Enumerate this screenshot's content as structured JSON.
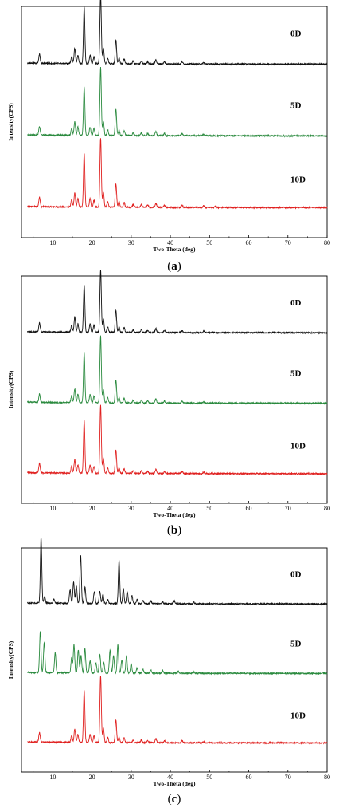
{
  "chart_data": [
    {
      "type": "line",
      "panel_label": "a",
      "xlabel": "Two-Theta (deg)",
      "ylabel": "Intensity(CPS)",
      "xlim": [
        2,
        80
      ],
      "xticks": [
        10,
        20,
        30,
        40,
        50,
        60,
        70,
        80
      ],
      "series": [
        {
          "name": "0D",
          "color": "#e0201f",
          "peaks": [
            [
              6.6,
              0.14
            ],
            [
              14.8,
              0.1
            ],
            [
              15.6,
              0.2
            ],
            [
              16.4,
              0.12
            ],
            [
              18.0,
              0.78
            ],
            [
              19.5,
              0.12
            ],
            [
              20.5,
              0.1
            ],
            [
              22.2,
              1.0
            ],
            [
              22.9,
              0.22
            ],
            [
              24.0,
              0.08
            ],
            [
              26.1,
              0.34
            ],
            [
              26.9,
              0.08
            ],
            [
              28.2,
              0.07
            ],
            [
              30.5,
              0.04
            ],
            [
              32.6,
              0.04
            ],
            [
              34.2,
              0.03
            ],
            [
              36.3,
              0.06
            ],
            [
              38.5,
              0.03
            ],
            [
              43.0,
              0.03
            ],
            [
              48.5,
              0.02
            ],
            [
              51.5,
              0.02
            ]
          ]
        },
        {
          "name": "5D",
          "color": "#2a8a3e",
          "peaks": [
            [
              6.6,
              0.12
            ],
            [
              14.8,
              0.1
            ],
            [
              15.6,
              0.2
            ],
            [
              16.4,
              0.12
            ],
            [
              18.0,
              0.7
            ],
            [
              19.5,
              0.12
            ],
            [
              20.5,
              0.1
            ],
            [
              22.2,
              0.98
            ],
            [
              22.9,
              0.2
            ],
            [
              24.0,
              0.08
            ],
            [
              26.1,
              0.38
            ],
            [
              26.9,
              0.08
            ],
            [
              28.2,
              0.07
            ],
            [
              30.5,
              0.04
            ],
            [
              32.6,
              0.04
            ],
            [
              34.2,
              0.03
            ],
            [
              36.3,
              0.06
            ],
            [
              38.5,
              0.03
            ],
            [
              43.0,
              0.03
            ],
            [
              48.5,
              0.02
            ]
          ]
        },
        {
          "name": "10D",
          "color": "#111111",
          "peaks": [
            [
              6.6,
              0.13
            ],
            [
              14.8,
              0.1
            ],
            [
              15.6,
              0.22
            ],
            [
              16.4,
              0.12
            ],
            [
              18.0,
              0.82
            ],
            [
              19.5,
              0.12
            ],
            [
              20.5,
              0.1
            ],
            [
              22.2,
              1.0
            ],
            [
              22.9,
              0.22
            ],
            [
              24.0,
              0.08
            ],
            [
              26.1,
              0.34
            ],
            [
              26.9,
              0.08
            ],
            [
              28.2,
              0.07
            ],
            [
              30.5,
              0.04
            ],
            [
              32.6,
              0.04
            ],
            [
              34.2,
              0.03
            ],
            [
              36.3,
              0.06
            ],
            [
              38.5,
              0.03
            ],
            [
              43.0,
              0.03
            ],
            [
              48.5,
              0.02
            ]
          ]
        }
      ]
    },
    {
      "type": "line",
      "panel_label": "b",
      "xlabel": "Two-Theta (deg)",
      "ylabel": "Intensity(CPS)",
      "xlim": [
        2,
        80
      ],
      "xticks": [
        10,
        20,
        30,
        40,
        50,
        60,
        70,
        80
      ],
      "series": [
        {
          "name": "0D",
          "color": "#e0201f",
          "peaks": [
            [
              6.6,
              0.14
            ],
            [
              14.8,
              0.1
            ],
            [
              15.6,
              0.2
            ],
            [
              16.4,
              0.12
            ],
            [
              18.0,
              0.78
            ],
            [
              19.5,
              0.12
            ],
            [
              20.5,
              0.1
            ],
            [
              22.2,
              1.0
            ],
            [
              22.9,
              0.22
            ],
            [
              24.0,
              0.08
            ],
            [
              26.1,
              0.34
            ],
            [
              26.9,
              0.08
            ],
            [
              28.2,
              0.07
            ],
            [
              30.5,
              0.04
            ],
            [
              32.6,
              0.04
            ],
            [
              34.2,
              0.03
            ],
            [
              36.3,
              0.06
            ],
            [
              38.5,
              0.03
            ],
            [
              43.0,
              0.03
            ],
            [
              48.5,
              0.02
            ]
          ]
        },
        {
          "name": "5D",
          "color": "#2a8a3e",
          "peaks": [
            [
              6.6,
              0.12
            ],
            [
              14.8,
              0.1
            ],
            [
              15.6,
              0.2
            ],
            [
              16.4,
              0.12
            ],
            [
              18.0,
              0.74
            ],
            [
              19.5,
              0.12
            ],
            [
              20.5,
              0.1
            ],
            [
              22.2,
              0.98
            ],
            [
              22.9,
              0.2
            ],
            [
              24.0,
              0.08
            ],
            [
              26.1,
              0.34
            ],
            [
              26.9,
              0.08
            ],
            [
              28.2,
              0.07
            ],
            [
              30.5,
              0.04
            ],
            [
              32.6,
              0.04
            ],
            [
              34.2,
              0.03
            ],
            [
              36.3,
              0.06
            ],
            [
              38.5,
              0.03
            ],
            [
              43.0,
              0.03
            ],
            [
              48.5,
              0.02
            ]
          ]
        },
        {
          "name": "10D",
          "color": "#111111",
          "peaks": [
            [
              6.6,
              0.13
            ],
            [
              14.8,
              0.1
            ],
            [
              15.6,
              0.22
            ],
            [
              16.4,
              0.12
            ],
            [
              18.0,
              0.7
            ],
            [
              19.5,
              0.12
            ],
            [
              20.5,
              0.1
            ],
            [
              22.2,
              0.92
            ],
            [
              22.9,
              0.2
            ],
            [
              24.0,
              0.08
            ],
            [
              26.1,
              0.32
            ],
            [
              26.9,
              0.08
            ],
            [
              28.2,
              0.07
            ],
            [
              30.5,
              0.04
            ],
            [
              32.6,
              0.04
            ],
            [
              34.2,
              0.03
            ],
            [
              36.3,
              0.06
            ],
            [
              38.5,
              0.03
            ],
            [
              43.0,
              0.03
            ],
            [
              48.5,
              0.02
            ]
          ]
        }
      ]
    },
    {
      "type": "line",
      "panel_label": "c",
      "xlabel": "Two-Theta (deg)",
      "ylabel": "Intensity(CPS)",
      "xlim": [
        2,
        80
      ],
      "xticks": [
        10,
        20,
        30,
        40,
        50,
        60,
        70,
        80
      ],
      "series": [
        {
          "name": "0D",
          "color": "#e0201f",
          "peaks": [
            [
              6.6,
              0.14
            ],
            [
              14.8,
              0.1
            ],
            [
              15.6,
              0.2
            ],
            [
              16.4,
              0.12
            ],
            [
              18.0,
              0.78
            ],
            [
              19.5,
              0.12
            ],
            [
              20.5,
              0.1
            ],
            [
              22.2,
              1.0
            ],
            [
              22.9,
              0.22
            ],
            [
              24.0,
              0.08
            ],
            [
              26.1,
              0.34
            ],
            [
              26.9,
              0.08
            ],
            [
              28.2,
              0.07
            ],
            [
              30.5,
              0.04
            ],
            [
              32.6,
              0.04
            ],
            [
              34.2,
              0.03
            ],
            [
              36.3,
              0.06
            ],
            [
              38.5,
              0.03
            ],
            [
              43.0,
              0.03
            ],
            [
              48.5,
              0.02
            ]
          ]
        },
        {
          "name": "5D",
          "color": "#2a8a3e",
          "peaks": [
            [
              6.8,
              0.62
            ],
            [
              7.8,
              0.45
            ],
            [
              10.6,
              0.3
            ],
            [
              14.8,
              0.22
            ],
            [
              15.4,
              0.42
            ],
            [
              16.5,
              0.34
            ],
            [
              17.2,
              0.26
            ],
            [
              18.2,
              0.36
            ],
            [
              19.5,
              0.18
            ],
            [
              21.0,
              0.15
            ],
            [
              22.0,
              0.28
            ],
            [
              23.0,
              0.16
            ],
            [
              24.6,
              0.34
            ],
            [
              25.5,
              0.26
            ],
            [
              26.6,
              0.42
            ],
            [
              27.6,
              0.2
            ],
            [
              28.8,
              0.26
            ],
            [
              30.0,
              0.14
            ],
            [
              31.5,
              0.08
            ],
            [
              33.0,
              0.06
            ],
            [
              35.0,
              0.05
            ],
            [
              38.0,
              0.04
            ],
            [
              42.0,
              0.03
            ],
            [
              46.0,
              0.02
            ]
          ]
        },
        {
          "name": "10D",
          "color": "#111111",
          "peaks": [
            [
              7.0,
              0.98
            ],
            [
              7.9,
              0.1
            ],
            [
              10.3,
              0.06
            ],
            [
              14.4,
              0.2
            ],
            [
              15.3,
              0.32
            ],
            [
              16.0,
              0.26
            ],
            [
              17.1,
              0.72
            ],
            [
              18.2,
              0.24
            ],
            [
              20.6,
              0.18
            ],
            [
              22.0,
              0.18
            ],
            [
              22.8,
              0.14
            ],
            [
              24.0,
              0.06
            ],
            [
              26.9,
              0.64
            ],
            [
              28.0,
              0.22
            ],
            [
              29.0,
              0.18
            ],
            [
              30.2,
              0.12
            ],
            [
              31.5,
              0.06
            ],
            [
              33.0,
              0.05
            ],
            [
              35.0,
              0.04
            ],
            [
              38.0,
              0.03
            ],
            [
              41.0,
              0.04
            ],
            [
              46.0,
              0.02
            ]
          ]
        }
      ]
    }
  ]
}
